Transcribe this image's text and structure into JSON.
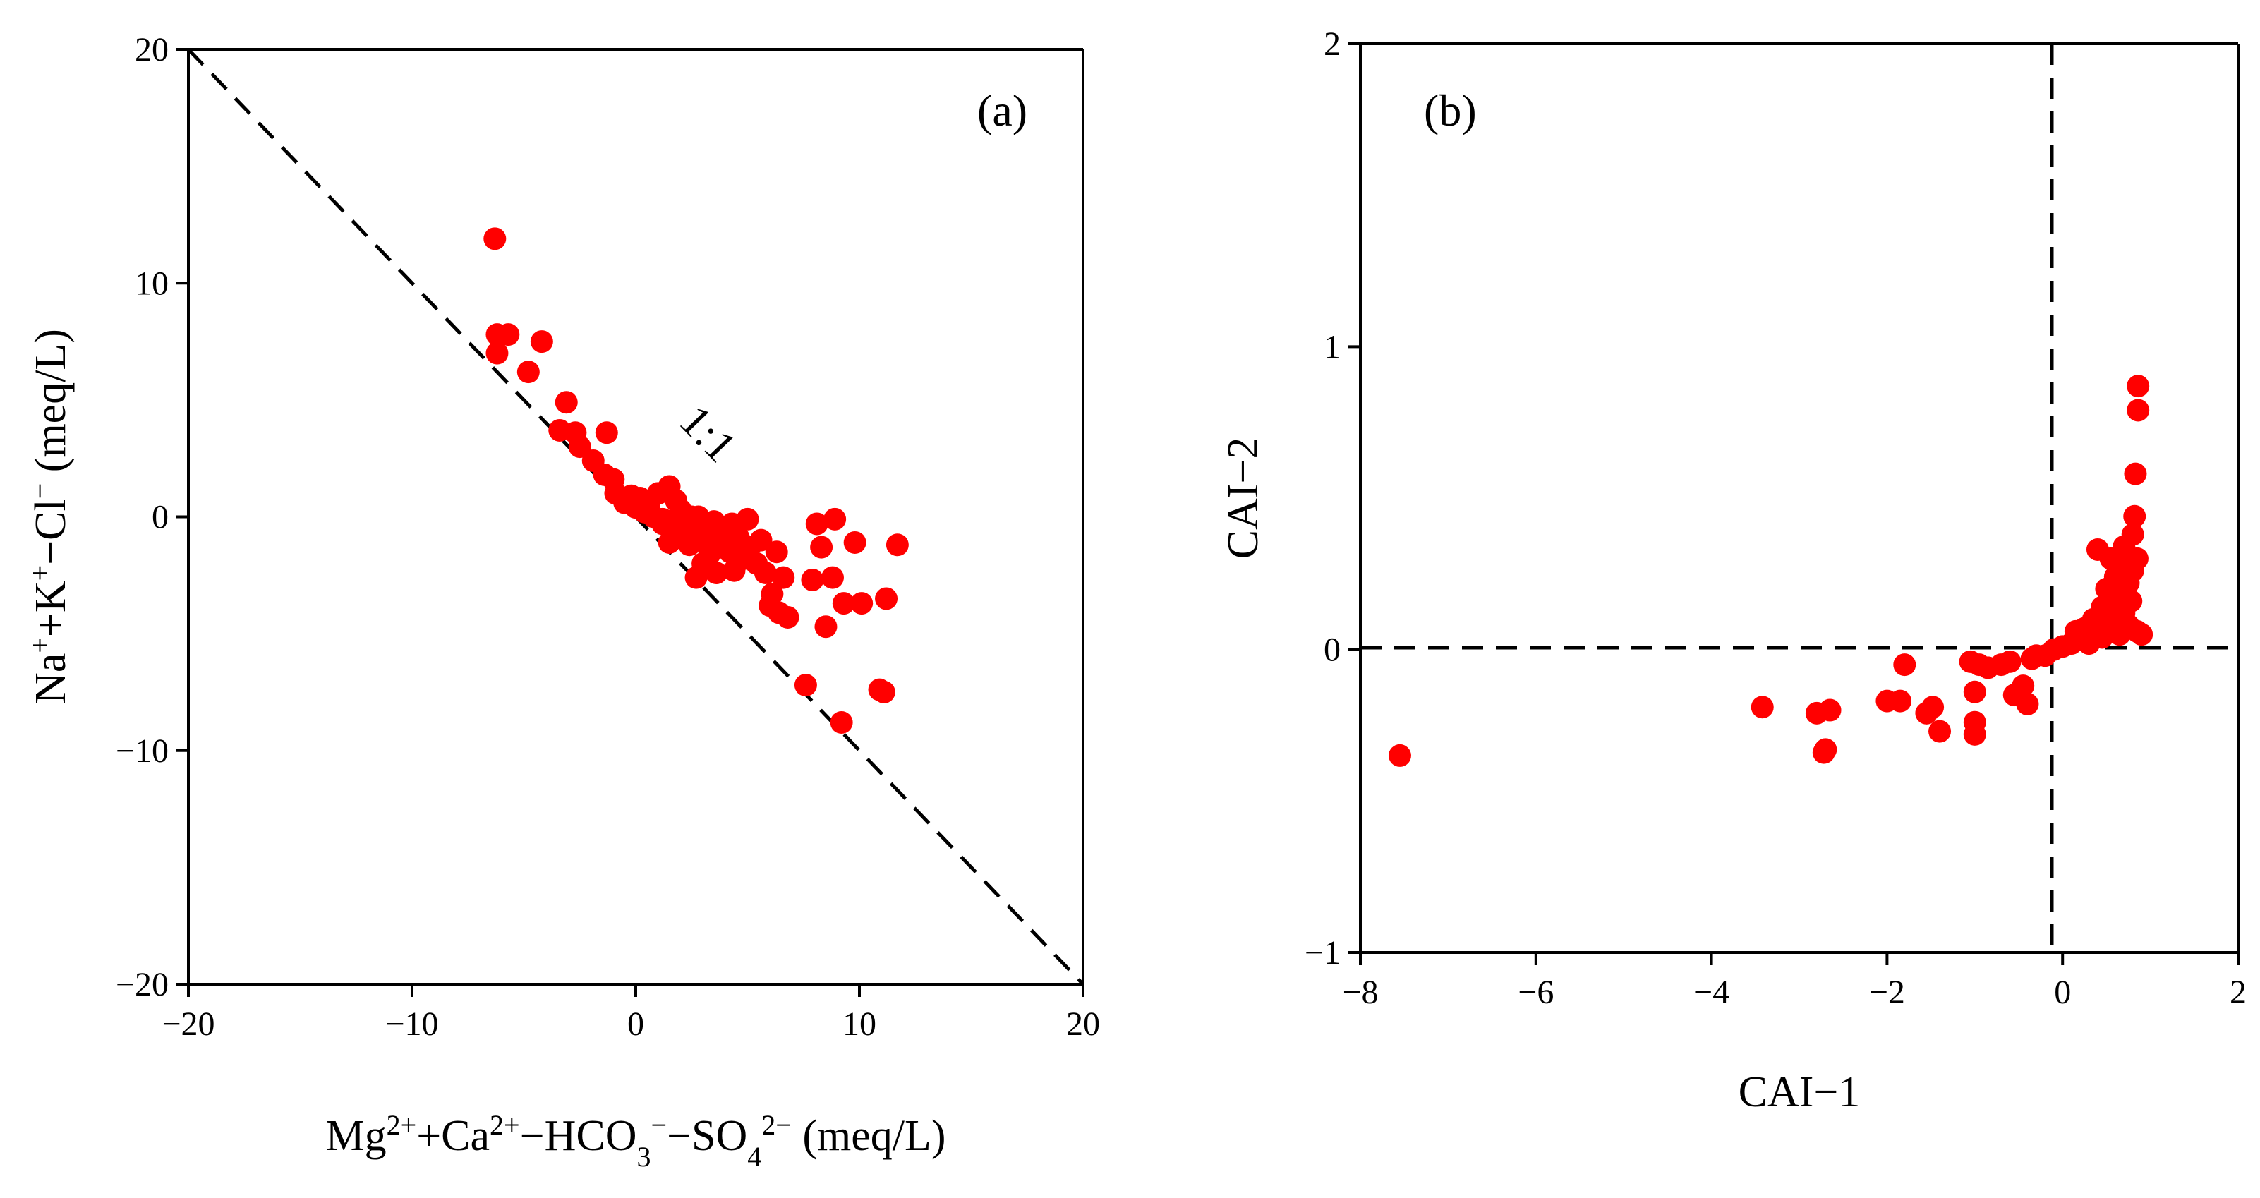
{
  "chart_data": [
    {
      "type": "scatter",
      "panel_label": "(a)",
      "xlabel": {
        "base1": "Mg",
        "sup1": "2+",
        "base2": "+Ca",
        "sup2": "2+",
        "base3": "−HCO",
        "sub3": "3",
        "sup3": "−",
        "base4": "−SO",
        "sub4": "4",
        "sup4": "2−",
        "tail": " (meq/L)"
      },
      "ylabel": {
        "base1": "Na",
        "sup1": "+",
        "base2": "+K",
        "sup2": "+",
        "base3": "−Cl",
        "sup3": "−",
        "tail": " (meq/L)"
      },
      "xlim": [
        -20,
        20
      ],
      "ylim": [
        -20,
        20
      ],
      "xticks": [
        -20,
        -10,
        0,
        10,
        20
      ],
      "yticks": [
        -20,
        -10,
        0,
        10,
        20
      ],
      "xtick_labels": [
        "−20",
        "−10",
        "0",
        "10",
        "20"
      ],
      "ytick_labels": [
        "−20",
        "−10",
        "0",
        "10",
        "20"
      ],
      "reference_line": {
        "label": "1:1",
        "from": [
          -20,
          20
        ],
        "to": [
          20,
          -20
        ]
      },
      "marker_color": "#ff0000",
      "points": [
        [
          -6.3,
          11.9
        ],
        [
          -6.2,
          7.8
        ],
        [
          -5.7,
          7.8
        ],
        [
          -6.2,
          7.0
        ],
        [
          -4.2,
          7.5
        ],
        [
          -4.8,
          6.2
        ],
        [
          -3.1,
          4.9
        ],
        [
          -3.4,
          3.7
        ],
        [
          -2.7,
          3.6
        ],
        [
          -1.3,
          3.6
        ],
        [
          -2.5,
          3.0
        ],
        [
          -1.9,
          2.4
        ],
        [
          -1.4,
          1.8
        ],
        [
          -1.0,
          1.6
        ],
        [
          -0.9,
          1.0
        ],
        [
          -0.5,
          0.6
        ],
        [
          0.2,
          0.8
        ],
        [
          0.6,
          0.5
        ],
        [
          1.0,
          1.0
        ],
        [
          1.5,
          1.3
        ],
        [
          1.8,
          0.7
        ],
        [
          0.8,
          0.0
        ],
        [
          1.2,
          -0.3
        ],
        [
          2.0,
          0.3
        ],
        [
          2.5,
          0.0
        ],
        [
          2.2,
          -0.6
        ],
        [
          2.8,
          0.0
        ],
        [
          3.2,
          -0.4
        ],
        [
          3.0,
          -1.0
        ],
        [
          3.6,
          -1.2
        ],
        [
          4.0,
          -0.5
        ],
        [
          3.5,
          -0.2
        ],
        [
          4.2,
          -1.5
        ],
        [
          4.6,
          -0.9
        ],
        [
          5.0,
          -0.1
        ],
        [
          5.1,
          -1.3
        ],
        [
          5.4,
          -2.0
        ],
        [
          3.0,
          -2.0
        ],
        [
          2.7,
          -2.6
        ],
        [
          3.6,
          -2.4
        ],
        [
          4.4,
          -2.3
        ],
        [
          5.8,
          -2.4
        ],
        [
          6.3,
          -1.5
        ],
        [
          6.6,
          -2.6
        ],
        [
          6.1,
          -3.3
        ],
        [
          6.0,
          -3.8
        ],
        [
          6.4,
          -4.1
        ],
        [
          6.8,
          -4.3
        ],
        [
          7.9,
          -2.7
        ],
        [
          8.1,
          -0.3
        ],
        [
          8.3,
          -1.3
        ],
        [
          8.9,
          -0.1
        ],
        [
          8.8,
          -2.6
        ],
        [
          8.5,
          -4.7
        ],
        [
          9.3,
          -3.7
        ],
        [
          9.8,
          -1.1
        ],
        [
          10.1,
          -3.7
        ],
        [
          11.2,
          -3.5
        ],
        [
          11.7,
          -1.2
        ],
        [
          10.9,
          -7.4
        ],
        [
          11.1,
          -7.5
        ],
        [
          9.2,
          -8.8
        ],
        [
          7.6,
          -7.2
        ],
        [
          1.2,
          -0.1
        ],
        [
          2.0,
          -0.9
        ],
        [
          0.4,
          0.2
        ],
        [
          1.7,
          -0.4
        ],
        [
          2.4,
          -1.2
        ],
        [
          3.9,
          -0.8
        ],
        [
          4.8,
          -1.8
        ],
        [
          2.9,
          -0.6
        ],
        [
          1.5,
          -1.1
        ],
        [
          0.0,
          0.4
        ],
        [
          -0.2,
          0.9
        ],
        [
          3.3,
          -1.6
        ],
        [
          4.3,
          -0.3
        ],
        [
          5.6,
          -1.0
        ]
      ]
    },
    {
      "type": "scatter",
      "panel_label": "(b)",
      "xlabel": "CAI−1",
      "ylabel": "CAI−2",
      "xlim": [
        -8,
        2
      ],
      "ylim": [
        -1,
        2
      ],
      "xticks": [
        -8,
        -6,
        -4,
        -2,
        0,
        2
      ],
      "yticks": [
        -1,
        0,
        1,
        2
      ],
      "xtick_labels": [
        "−8",
        "−6",
        "−4",
        "−2",
        "0",
        "2"
      ],
      "ytick_labels": [
        "−1",
        "0",
        "1",
        "2"
      ],
      "reference_lines": [
        {
          "orientation": "vertical",
          "value": 0
        },
        {
          "orientation": "horizontal",
          "value": 0
        }
      ],
      "marker_color": "#ff0000",
      "points": [
        [
          -7.55,
          -0.35
        ],
        [
          -3.42,
          -0.19
        ],
        [
          -2.8,
          -0.21
        ],
        [
          -2.65,
          -0.2
        ],
        [
          -2.72,
          -0.34
        ],
        [
          -2.7,
          -0.33
        ],
        [
          -2.0,
          -0.17
        ],
        [
          -1.85,
          -0.17
        ],
        [
          -1.8,
          -0.05
        ],
        [
          -1.55,
          -0.21
        ],
        [
          -1.48,
          -0.19
        ],
        [
          -1.4,
          -0.27
        ],
        [
          -1.0,
          -0.24
        ],
        [
          -1.0,
          -0.28
        ],
        [
          -1.0,
          -0.14
        ],
        [
          -1.05,
          -0.04
        ],
        [
          -0.95,
          -0.05
        ],
        [
          -0.85,
          -0.06
        ],
        [
          -0.7,
          -0.05
        ],
        [
          -0.6,
          -0.04
        ],
        [
          -0.55,
          -0.15
        ],
        [
          -0.45,
          -0.12
        ],
        [
          -0.4,
          -0.18
        ],
        [
          -0.35,
          -0.03
        ],
        [
          -0.3,
          -0.02
        ],
        [
          -0.2,
          -0.02
        ],
        [
          -0.1,
          0.0
        ],
        [
          0.0,
          0.01
        ],
        [
          0.1,
          0.02
        ],
        [
          0.2,
          0.04
        ],
        [
          0.25,
          0.07
        ],
        [
          0.3,
          0.05
        ],
        [
          0.35,
          0.1
        ],
        [
          0.4,
          0.08
        ],
        [
          0.45,
          0.14
        ],
        [
          0.5,
          0.12
        ],
        [
          0.5,
          0.2
        ],
        [
          0.55,
          0.16
        ],
        [
          0.6,
          0.24
        ],
        [
          0.6,
          0.1
        ],
        [
          0.65,
          0.28
        ],
        [
          0.7,
          0.18
        ],
        [
          0.7,
          0.34
        ],
        [
          0.75,
          0.22
        ],
        [
          0.8,
          0.38
        ],
        [
          0.8,
          0.26
        ],
        [
          0.85,
          0.3
        ],
        [
          0.85,
          0.06
        ],
        [
          0.9,
          0.05
        ],
        [
          0.4,
          0.33
        ],
        [
          0.55,
          0.3
        ],
        [
          0.65,
          0.05
        ],
        [
          0.75,
          0.08
        ],
        [
          0.82,
          0.44
        ],
        [
          0.83,
          0.58
        ],
        [
          0.86,
          0.79
        ],
        [
          0.86,
          0.87
        ],
        [
          0.3,
          0.02
        ],
        [
          0.15,
          0.06
        ],
        [
          0.45,
          0.04
        ],
        [
          0.7,
          0.12
        ],
        [
          0.6,
          0.15
        ],
        [
          0.78,
          0.16
        ],
        [
          0.5,
          0.08
        ]
      ]
    }
  ]
}
